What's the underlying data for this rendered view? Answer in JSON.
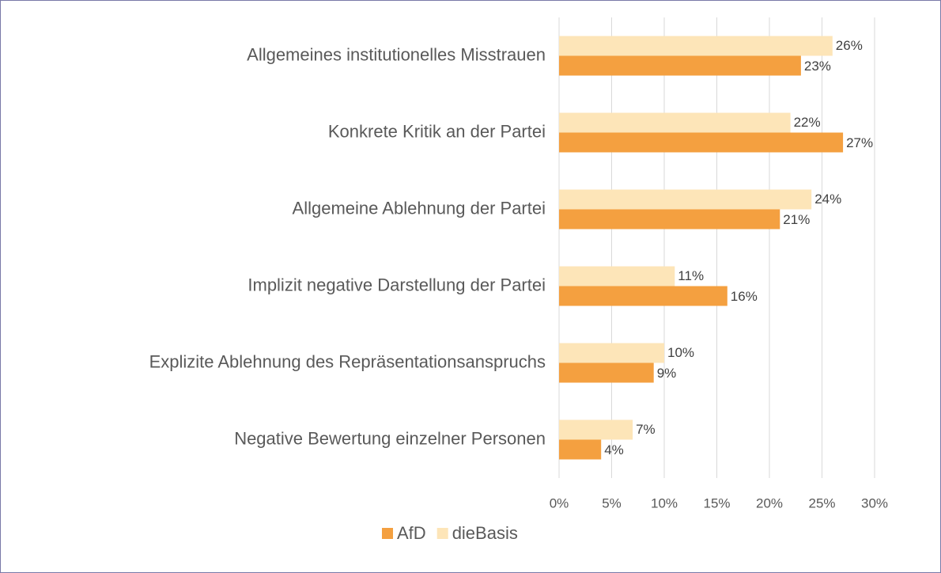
{
  "chart_data": {
    "type": "bar",
    "orientation": "horizontal",
    "categories": [
      "Allgemeines institutionelles Misstrauen",
      "Konkrete Kritik an der Partei",
      "Allgemeine Ablehnung der Partei",
      "Implizit negative Darstellung der Partei",
      "Explizite Ablehnung des Repräsentationsanspruchs",
      "Negative Bewertung einzelner Personen"
    ],
    "series": [
      {
        "name": "AfD",
        "color": "#f4a040",
        "values": [
          23,
          27,
          21,
          16,
          9,
          4
        ],
        "value_labels": [
          "23%",
          "27%",
          "21%",
          "16%",
          "9%",
          "4%"
        ]
      },
      {
        "name": "dieBasis",
        "color": "#fde5b8",
        "values": [
          26,
          22,
          24,
          11,
          10,
          7
        ],
        "value_labels": [
          "26%",
          "22%",
          "24%",
          "11%",
          "10%",
          "7%"
        ]
      }
    ],
    "xlim": [
      0,
      30
    ],
    "xticks": [
      {
        "value": 0,
        "label": "0%"
      },
      {
        "value": 5,
        "label": "5%"
      },
      {
        "value": 10,
        "label": "10%"
      },
      {
        "value": 15,
        "label": "15%"
      },
      {
        "value": 20,
        "label": "20%"
      },
      {
        "value": 25,
        "label": "25%"
      },
      {
        "value": 30,
        "label": "30%"
      }
    ],
    "grid": true,
    "legend": "bottom"
  }
}
